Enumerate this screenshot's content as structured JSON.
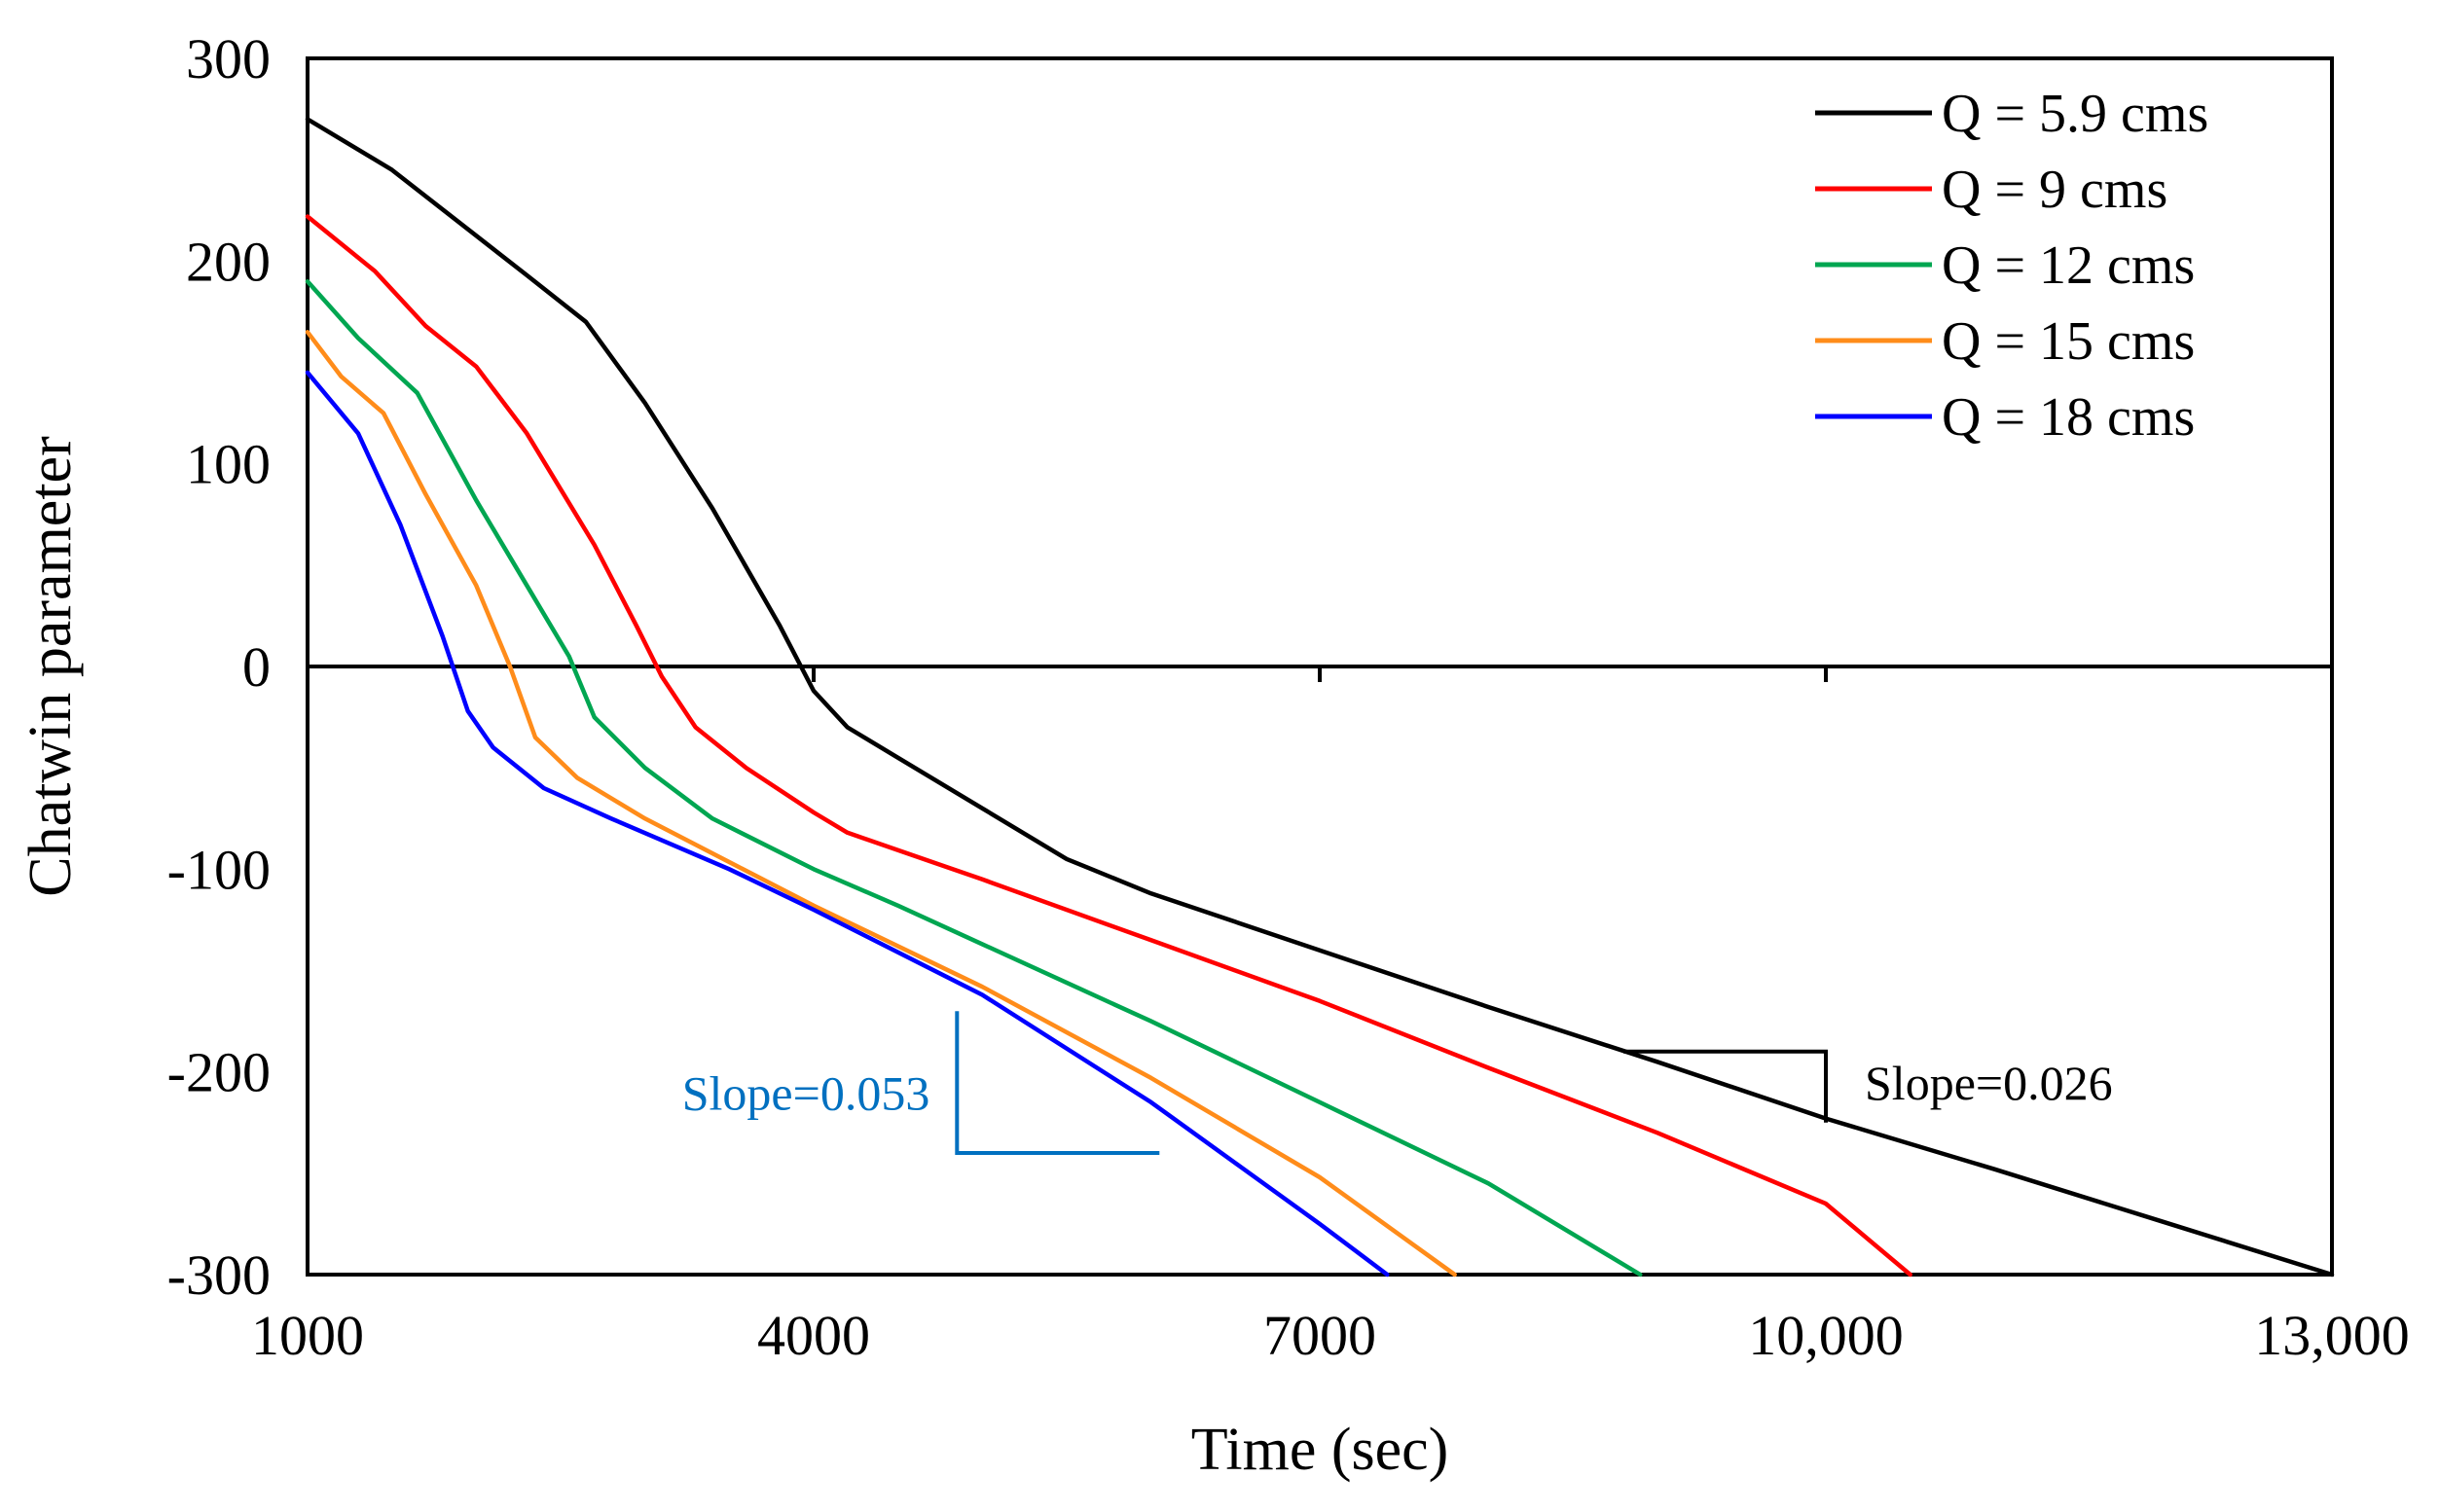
{
  "chart_data": {
    "type": "line",
    "xlabel": "Time (sec)",
    "ylabel": "Chatwin parameter",
    "xlim": [
      1000,
      13000
    ],
    "ylim": [
      -300,
      300
    ],
    "x_ticks": [
      1000,
      4000,
      7000,
      10000,
      13000
    ],
    "x_tick_labels": [
      "1000",
      "4000",
      "7000",
      "10,000",
      "13,000"
    ],
    "y_ticks": [
      300,
      200,
      100,
      0,
      -100,
      -200,
      -300
    ],
    "y_tick_labels": [
      "300",
      "200",
      "100",
      "0",
      "-100",
      "-200",
      "-300"
    ],
    "grid": false,
    "legend_position": "top-right",
    "series": [
      {
        "name": "Q = 5.9 cms",
        "color": "#000000",
        "points": [
          [
            1000,
            270
          ],
          [
            1500,
            245
          ],
          [
            2300,
            193
          ],
          [
            2650,
            170
          ],
          [
            3000,
            130
          ],
          [
            3400,
            78
          ],
          [
            3800,
            20
          ],
          [
            4000,
            -12
          ],
          [
            4200,
            -30
          ],
          [
            4500,
            -45
          ],
          [
            5000,
            -70
          ],
          [
            5500,
            -95
          ],
          [
            6000,
            -112
          ],
          [
            7000,
            -140
          ],
          [
            8000,
            -168
          ],
          [
            9000,
            -195
          ],
          [
            10000,
            -223
          ],
          [
            11000,
            -248
          ],
          [
            12000,
            -274
          ],
          [
            13000,
            -300
          ]
        ]
      },
      {
        "name": "Q = 9 cms",
        "color": "#ff0000",
        "points": [
          [
            1000,
            222
          ],
          [
            1400,
            195
          ],
          [
            1700,
            168
          ],
          [
            2000,
            148
          ],
          [
            2300,
            115
          ],
          [
            2700,
            60
          ],
          [
            2950,
            20
          ],
          [
            3100,
            -5
          ],
          [
            3300,
            -30
          ],
          [
            3600,
            -50
          ],
          [
            4000,
            -72
          ],
          [
            4200,
            -82
          ],
          [
            5000,
            -105
          ],
          [
            6000,
            -135
          ],
          [
            7000,
            -165
          ],
          [
            8000,
            -198
          ],
          [
            9000,
            -230
          ],
          [
            10000,
            -265
          ],
          [
            10500,
            -300
          ]
        ]
      },
      {
        "name": "Q = 12 cms",
        "color": "#00a651",
        "points": [
          [
            1000,
            190
          ],
          [
            1300,
            162
          ],
          [
            1650,
            135
          ],
          [
            2000,
            82
          ],
          [
            2300,
            40
          ],
          [
            2550,
            5
          ],
          [
            2700,
            -25
          ],
          [
            3000,
            -50
          ],
          [
            3400,
            -75
          ],
          [
            4000,
            -100
          ],
          [
            4500,
            -118
          ],
          [
            5000,
            -137
          ],
          [
            6000,
            -175
          ],
          [
            7000,
            -215
          ],
          [
            8000,
            -255
          ],
          [
            8900,
            -300
          ]
        ]
      },
      {
        "name": "Q = 15 cms",
        "color": "#ff8c1a",
        "points": [
          [
            1000,
            165
          ],
          [
            1200,
            143
          ],
          [
            1450,
            125
          ],
          [
            1700,
            85
          ],
          [
            2000,
            40
          ],
          [
            2200,
            0
          ],
          [
            2350,
            -35
          ],
          [
            2600,
            -55
          ],
          [
            3000,
            -75
          ],
          [
            4000,
            -118
          ],
          [
            5000,
            -158
          ],
          [
            6000,
            -203
          ],
          [
            7000,
            -252
          ],
          [
            7800,
            -300
          ]
        ]
      },
      {
        "name": "Q = 18 cms",
        "color": "#0000ff",
        "points": [
          [
            1000,
            145
          ],
          [
            1300,
            115
          ],
          [
            1550,
            70
          ],
          [
            1800,
            15
          ],
          [
            1950,
            -22
          ],
          [
            2100,
            -40
          ],
          [
            2400,
            -60
          ],
          [
            2800,
            -75
          ],
          [
            3500,
            -100
          ],
          [
            4000,
            -120
          ],
          [
            5000,
            -162
          ],
          [
            6000,
            -215
          ],
          [
            7000,
            -275
          ],
          [
            7400,
            -300
          ]
        ]
      }
    ],
    "annotations": [
      {
        "text": "Slope=0.053",
        "color": "#0070c0",
        "triangle": [
          [
            4850,
            -170
          ],
          [
            4850,
            -240
          ],
          [
            6050,
            -240
          ]
        ]
      },
      {
        "text": "Slope=0.026",
        "color": "#000000",
        "triangle": [
          [
            8800,
            -190
          ],
          [
            10000,
            -190
          ],
          [
            10000,
            -225
          ]
        ]
      }
    ]
  }
}
